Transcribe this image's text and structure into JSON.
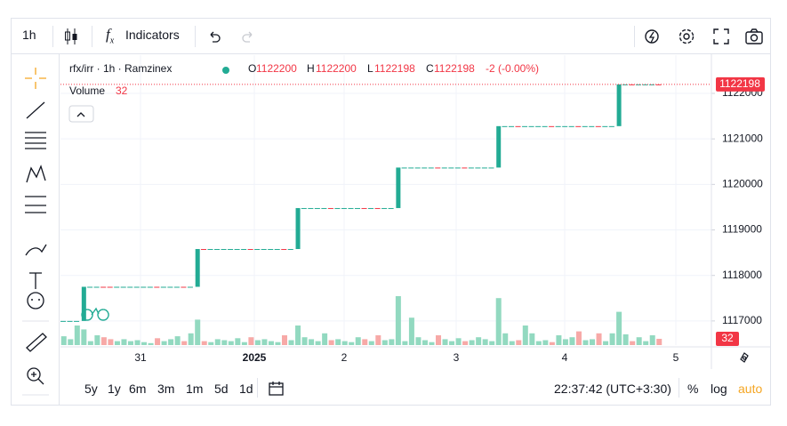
{
  "toolbar": {
    "interval": "1h",
    "indicators": "Indicators"
  },
  "legend": {
    "symbol": "rfx/irr · 1h · Ramzinex",
    "o_label": "O",
    "open": 1122200,
    "h_label": "H",
    "high": 1122200,
    "l_label": "L",
    "low": 1122198,
    "c_label": "C",
    "close": 1122198,
    "change": "-2 (-0.00%)",
    "volume_label": "Volume",
    "volume": 32
  },
  "chart": {
    "type": "candlestick",
    "ylim": [
      1116470,
      1122840
    ],
    "yticks": [
      1117000,
      1118000,
      1119000,
      1120000,
      1121000,
      1122000
    ],
    "last_price": 1122198,
    "last_volume": 32,
    "time_labels": [
      "31",
      "2025",
      "2",
      "3",
      "4",
      "5"
    ],
    "closes": [
      1117000,
      1117000,
      1117000,
      1117750,
      1117750,
      1117750,
      1117750,
      1117750,
      1117750,
      1117750,
      1117750,
      1117750,
      1117750,
      1117750,
      1117750,
      1117750,
      1117750,
      1117750,
      1117750,
      1117750,
      1118580,
      1118580,
      1118580,
      1118580,
      1118580,
      1118580,
      1118580,
      1118580,
      1118580,
      1118580,
      1118580,
      1118580,
      1118580,
      1118580,
      1118580,
      1119480,
      1119480,
      1119480,
      1119480,
      1119480,
      1119480,
      1119480,
      1119480,
      1119480,
      1119480,
      1119480,
      1119480,
      1119480,
      1119480,
      1119480,
      1120370,
      1120370,
      1120370,
      1120370,
      1120370,
      1120370,
      1120370,
      1120370,
      1120370,
      1120370,
      1120370,
      1120370,
      1120370,
      1120370,
      1120370,
      1121280,
      1121280,
      1121280,
      1121280,
      1121280,
      1121280,
      1121280,
      1121280,
      1121280,
      1121280,
      1121280,
      1121280,
      1121280,
      1121280,
      1121280,
      1121280,
      1121280,
      1121280,
      1122198,
      1122198,
      1122198,
      1122198,
      1122198,
      1122198,
      1122198
    ],
    "volumes": [
      45,
      30,
      100,
      80,
      20,
      50,
      40,
      30,
      20,
      30,
      20,
      25,
      15,
      10,
      35,
      20,
      30,
      45,
      20,
      60,
      130,
      20,
      15,
      30,
      25,
      20,
      35,
      15,
      40,
      25,
      30,
      20,
      15,
      50,
      25,
      100,
      40,
      30,
      20,
      60,
      25,
      30,
      20,
      15,
      40,
      30,
      20,
      50,
      25,
      30,
      250,
      20,
      140,
      40,
      25,
      15,
      50,
      30,
      20,
      35,
      20,
      25,
      40,
      30,
      20,
      240,
      60,
      20,
      25,
      100,
      60,
      20,
      25,
      15,
      50,
      30,
      40,
      70,
      25,
      30,
      60,
      20,
      60,
      170,
      55,
      20,
      40,
      20,
      50,
      32
    ],
    "volume_ylim": [
      0,
      400
    ],
    "down_bars": [
      6,
      7,
      14,
      18,
      21,
      28,
      33,
      40,
      45,
      47,
      56,
      60,
      68,
      73,
      77,
      80,
      85,
      89
    ]
  },
  "bottom": {
    "ranges": [
      "5y",
      "1y",
      "6m",
      "3m",
      "1m",
      "5d",
      "1d"
    ],
    "clock": "22:37:42 (UTC+3:30)",
    "percent": "%",
    "log": "log",
    "auto": "auto"
  }
}
